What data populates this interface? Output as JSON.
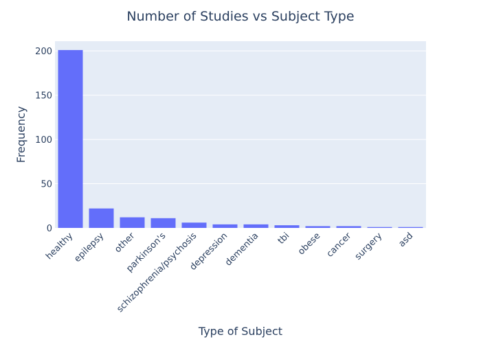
{
  "chart_data": {
    "type": "bar",
    "title": "Number of Studies vs Subject Type",
    "xlabel": "Type of Subject",
    "ylabel": "Frequency",
    "categories": [
      "healthy",
      "epilepsy",
      "other",
      "parkinson's",
      "schizophrenia/psychosis",
      "depression",
      "dementia",
      "tbi",
      "obese",
      "cancer",
      "surgery",
      "asd"
    ],
    "values": [
      201,
      22,
      12,
      11,
      6,
      4,
      4,
      3,
      2,
      2,
      1,
      1
    ],
    "ylim": [
      0,
      211
    ],
    "yticks": [
      0,
      50,
      100,
      150,
      200
    ],
    "grid": true,
    "colors": {
      "bar": "#636efa",
      "plot_bg": "#e5ecf6",
      "grid": "#ffffff",
      "text": "#2a3f5f"
    }
  }
}
